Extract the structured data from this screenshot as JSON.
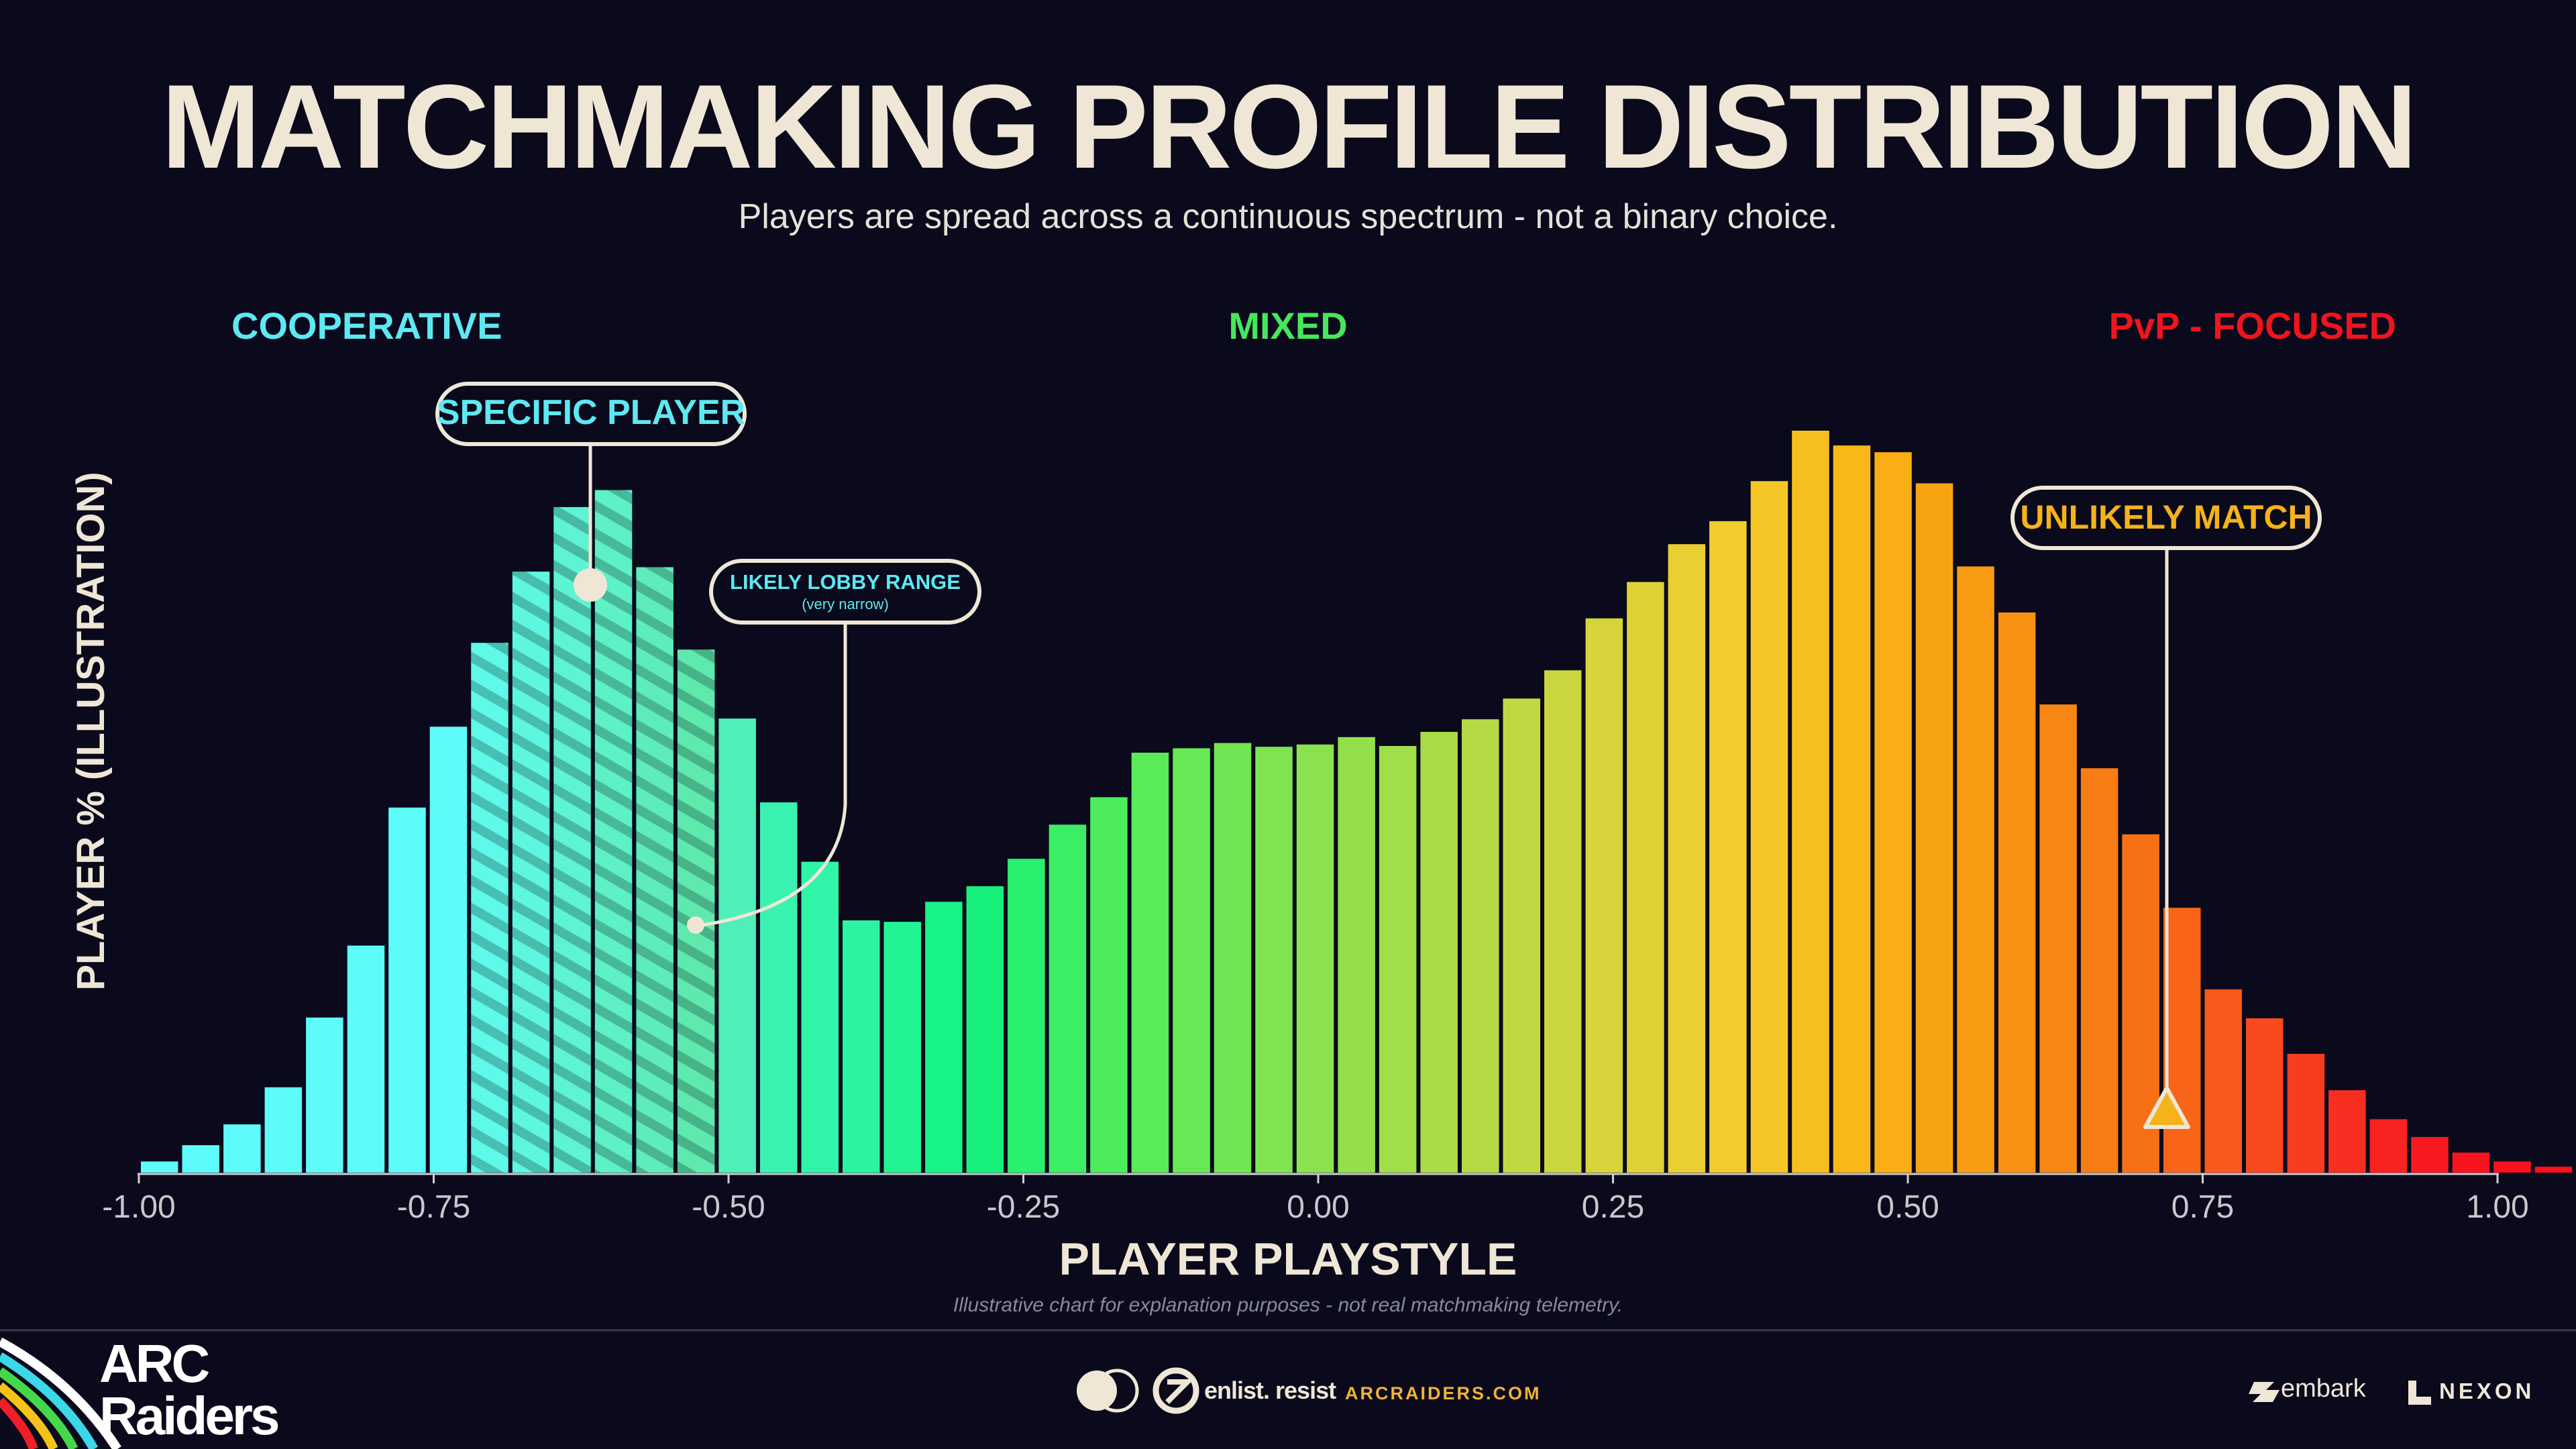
{
  "header": {
    "title": "MATCHMAKING PROFILE DISTRIBUTION",
    "subtitle": "Players are spread across a continuous spectrum - not a binary choice."
  },
  "zones": [
    {
      "label": "COOPERATIVE",
      "color": "#5ee8f2"
    },
    {
      "label": "MIXED",
      "color": "#45e85a"
    },
    {
      "label": "PvP - FOCUSED",
      "color": "#f0141e"
    }
  ],
  "callouts": {
    "specific_player": {
      "label": "SPECIFIC PLAYER",
      "x": -0.61,
      "color": "#5ee8f2"
    },
    "likely_lobby_range": {
      "label": "LIKELY LOBBY RANGE",
      "sublabel": "(very narrow)",
      "range": [
        -0.73,
        -0.51
      ],
      "color": "#5ee8f2"
    },
    "unlikely_match": {
      "label": "UNLIKELY MATCH",
      "x": 0.72,
      "color": "#f5b21a"
    }
  },
  "chart_data": {
    "type": "bar",
    "xlabel": "PLAYER PLAYSTYLE",
    "ylabel": "PLAYER % (ILLUSTRATION)",
    "xlim": [
      -1.0,
      1.0
    ],
    "xticks": [
      "-1.00",
      "-0.75",
      "-0.50",
      "-0.25",
      "0.00",
      "0.25",
      "0.50",
      "0.75",
      "1.00"
    ],
    "xtick_values": [
      -1.0,
      -0.75,
      -0.5,
      -0.25,
      0.0,
      0.25,
      0.5,
      0.75,
      1.0
    ],
    "bin_start": -1.0,
    "bin_width": 0.035,
    "ylim": [
      0,
      100
    ],
    "grid": false,
    "values": [
      1.5,
      3.7,
      6.5,
      11.5,
      20.9,
      30.6,
      49.2,
      60.1,
      71.4,
      81.0,
      89.7,
      92.0,
      81.6,
      70.5,
      61.2,
      49.9,
      41.9,
      34.0,
      33.8,
      36.5,
      38.6,
      42.3,
      46.9,
      50.6,
      56.6,
      57.2,
      57.9,
      57.4,
      57.7,
      58.7,
      57.5,
      59.4,
      61.1,
      63.9,
      67.7,
      74.7,
      79.6,
      84.7,
      87.8,
      93.2,
      100.0,
      98.0,
      97.1,
      92.9,
      81.7,
      75.5,
      63.1,
      54.5,
      45.6,
      35.7,
      24.7,
      20.8,
      16.0,
      11.1,
      7.2,
      4.8,
      2.7,
      1.5,
      0.8,
      0.5
    ],
    "colors": [
      "#5efbfb",
      "#5efbfb",
      "#5efbfb",
      "#5efbfb",
      "#5efbfb",
      "#5efbfb",
      "#5efbfb",
      "#5efbfb",
      "#5ef9e8",
      "#5ef6de",
      "#5ef3d2",
      "#5ef0c6",
      "#5eedba",
      "#5ee9ad",
      "#4ef0b8",
      "#3af2b0",
      "#30f4a8",
      "#2af49f",
      "#22f494",
      "#18f488",
      "#18f07c",
      "#2af070",
      "#3cee64",
      "#4ced5c",
      "#5aeb58",
      "#66e954",
      "#72e652",
      "#7ee450",
      "#8ae24e",
      "#94e04c",
      "#a0de4a",
      "#aadc48",
      "#b6da46",
      "#c2d842",
      "#ccd63e",
      "#d6d43a",
      "#e0d236",
      "#eacf32",
      "#f2cb2c",
      "#f6c626",
      "#f8c01e",
      "#f8b818",
      "#f8ae14",
      "#f8a412",
      "#f89a12",
      "#f89012",
      "#f88612",
      "#f87c14",
      "#f87016",
      "#f86418",
      "#f8581c",
      "#f84a1e",
      "#f83c20",
      "#f82e20",
      "#f82220",
      "#f81a20",
      "#f8141e",
      "#f8121e",
      "#f8101c",
      "#f80e1c"
    ]
  },
  "footer": {
    "brand_top": "ARC",
    "brand_bottom": "Raiders",
    "tagline": "enlist. resist",
    "url": "ARCRAIDERS.COM",
    "publisher1": "embark",
    "publisher2": "NEXON",
    "footnote": "Illustrative chart for explanation purposes - not real matchmaking telemetry.",
    "url_color": "#f2b236"
  }
}
